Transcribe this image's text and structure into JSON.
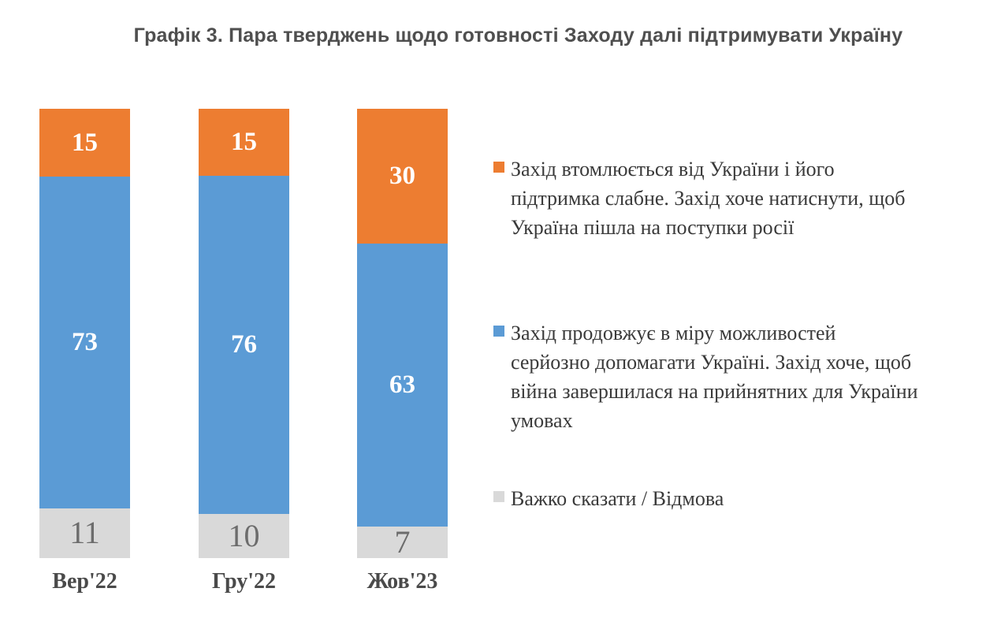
{
  "title": "Графік 3. Пара тверджень щодо готовності Заходу далі підтримувати Україну",
  "colors": {
    "background": "#FFFFFF",
    "orange": "#ED7D31",
    "blue": "#5B9BD5",
    "gray": "#D9D9D9",
    "title_text": "#4F4F4F",
    "legend_text": "#3A3A3A",
    "axis_label_text": "#4A4A4A",
    "value_label_on_color": "#FFFFFF",
    "value_label_on_gray": "#6C6C6C"
  },
  "chart_data": {
    "type": "bar",
    "subtype": "stacked-column-100",
    "title": "Графік 3. Пара тверджень щодо готовності Заходу далі підтримувати Україну",
    "categories": [
      "Вер'22",
      "Гру'22",
      "Жов'23"
    ],
    "series": [
      {
        "name": "Захід втомлюється від України і його підтримка слабне. Захід хоче натиснути, щоб Україна пішла на поступки росії",
        "color": "#ED7D31",
        "label_color": "#FFFFFF",
        "values": [
          15,
          15,
          30
        ]
      },
      {
        "name": "Захід продовжує в міру можливостей серйозно допомагати Україні. Захід хоче, щоб війна завершилася на прийнятних для України умовах",
        "color": "#5B9BD5",
        "label_color": "#FFFFFF",
        "values": [
          73,
          76,
          63
        ]
      },
      {
        "name": "Важко сказати / Відмова",
        "color": "#D9D9D9",
        "label_color": "#6C6C6C",
        "values": [
          11,
          10,
          7
        ]
      }
    ],
    "stack_order_top_to_bottom": [
      "Захід втомлюється…",
      "Захід продовжує…",
      "Важко сказати / Відмова"
    ],
    "xlabel": "",
    "ylabel": "",
    "ylim": [
      0,
      100
    ],
    "grid": false,
    "axes_hidden": true,
    "value_labels_shown": true,
    "legend_position": "right"
  },
  "legend": {
    "items": [
      {
        "marker": "square-icon",
        "marker_color": "#ED7D31",
        "text": "Захід втомлюється від України і його\nпідтримка слабне. Захід хоче натиснути, щоб\nУкраїна пішла на поступки росії"
      },
      {
        "marker": "square-icon",
        "marker_color": "#5B9BD5",
        "text": "Захід продовжує в міру можливостей\nсерйозно допомагати Україні. Захід хоче, щоб\nвійна завершилася на прийнятних для України\nумовах"
      },
      {
        "marker": "square-icon",
        "marker_color": "#D9D9D9",
        "text": "Важко сказати / Відмова"
      }
    ]
  }
}
